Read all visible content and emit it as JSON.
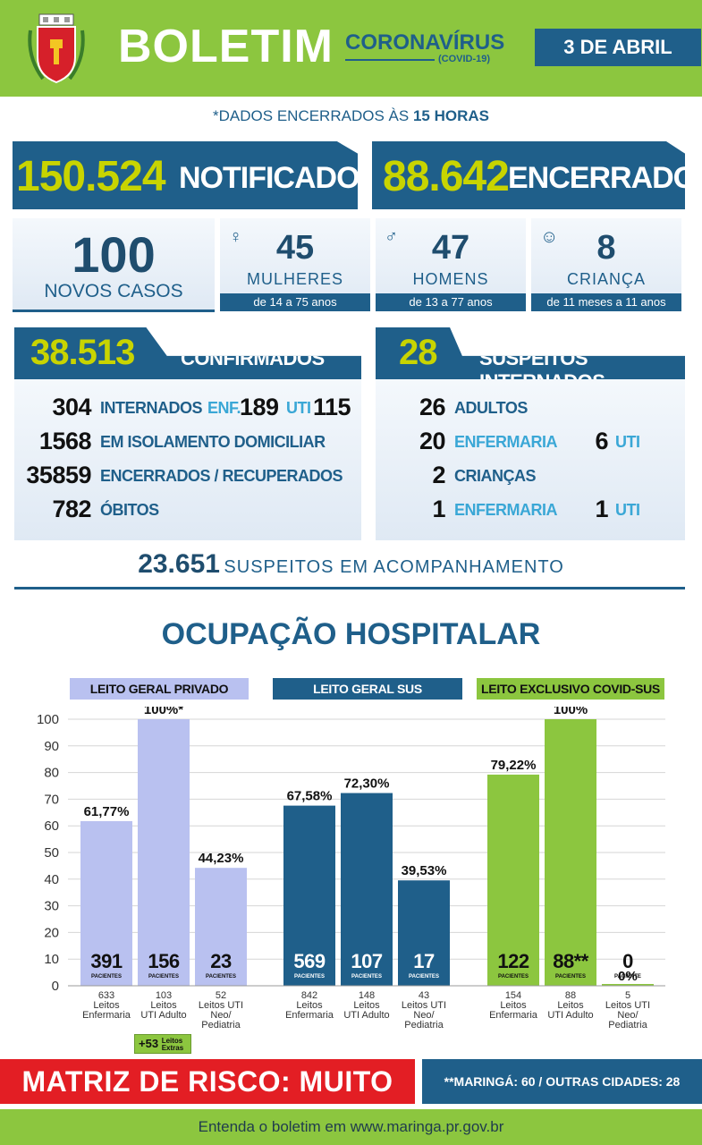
{
  "header": {
    "title": "BOLETIM",
    "subtitle": "CORONAVÍRUS",
    "subtitle_small": "(COVID-19)",
    "date": "3 DE ABRIL"
  },
  "note": {
    "prefix": "*DADOS ENCERRADOS ÀS",
    "hour": "15 HORAS"
  },
  "notificados": {
    "value": "150.524",
    "label": "NOTIFICADOS"
  },
  "encerrados": {
    "value": "88.642",
    "label": "ENCERRADOS"
  },
  "new_cases": {
    "value": "100",
    "label": "NOVOS CASOS"
  },
  "demographics": [
    {
      "value": "45",
      "label": "MULHERES",
      "range": "de 14 a 75 anos",
      "icon": "woman-icon"
    },
    {
      "value": "47",
      "label": "HOMENS",
      "range": "de 13 a 77 anos",
      "icon": "man-icon"
    },
    {
      "value": "8",
      "label": "CRIANÇA",
      "range": "de 11 meses a 11 anos",
      "icon": "child-icon"
    }
  ],
  "confirmed": {
    "value": "38.513",
    "label": "CONFIRMADOS",
    "rows": [
      {
        "value": "304",
        "label": "INTERNADOS",
        "enf_label": "ENF.",
        "enf_value": "189",
        "uti_label": "UTI",
        "uti_value": "115"
      },
      {
        "value": "1568",
        "label": "EM ISOLAMENTO DOMICILIAR"
      },
      {
        "value": "35859",
        "label": "ENCERRADOS / RECUPERADOS"
      },
      {
        "value": "782",
        "label": "ÓBITOS"
      }
    ]
  },
  "suspects": {
    "value": "28",
    "label": "SUSPEITOS INTERNADOS",
    "rows": [
      {
        "value": "26",
        "label": "ADULTOS"
      },
      {
        "value": "20",
        "label": "ENFERMARIA",
        "uti_value": "6",
        "uti_label": "UTI"
      },
      {
        "value": "2",
        "label": "CRIANÇAS"
      },
      {
        "value": "1",
        "label": "ENFERMARIA",
        "uti_value": "1",
        "uti_label": "UTI"
      }
    ]
  },
  "monitoring": {
    "value": "23.651",
    "label": "SUSPEITOS EM ACOMPANHAMENTO"
  },
  "occupancy_title": "OCUPAÇÃO HOSPITALAR",
  "chart_data": {
    "type": "bar",
    "ylim": [
      0,
      100
    ],
    "yticks": [
      0,
      10,
      20,
      30,
      40,
      50,
      60,
      70,
      80,
      90,
      100
    ],
    "groups": [
      {
        "name": "LEITO GERAL PRIVADO",
        "color": "#b9c1f0",
        "bars": [
          {
            "value": 61.77,
            "pct_label": "61,77%",
            "patients": "391",
            "beds": "633",
            "category": [
              "Leitos",
              "Enfermaria"
            ]
          },
          {
            "value": 100,
            "pct_label": "100%*",
            "patients": "156",
            "beds": "103",
            "category": [
              "Leitos",
              "UTI Adulto"
            ]
          },
          {
            "value": 44.23,
            "pct_label": "44,23%",
            "patients": "23",
            "beds": "52",
            "category": [
              "Leitos UTI",
              "Neo/",
              "Pediatria"
            ]
          }
        ]
      },
      {
        "name": "LEITO GERAL SUS",
        "color": "#1f5f8a",
        "bars": [
          {
            "value": 67.58,
            "pct_label": "67,58%",
            "patients": "569",
            "beds": "842",
            "category": [
              "Leitos",
              "Enfermaria"
            ]
          },
          {
            "value": 72.3,
            "pct_label": "72,30%",
            "patients": "107",
            "beds": "148",
            "category": [
              "Leitos",
              "UTI Adulto"
            ]
          },
          {
            "value": 39.53,
            "pct_label": "39,53%",
            "patients": "17",
            "beds": "43",
            "category": [
              "Leitos UTI",
              "Neo/",
              "Pediatria"
            ]
          }
        ]
      },
      {
        "name": "LEITO EXCLUSIVO COVID-SUS",
        "color": "#8cc63f",
        "bars": [
          {
            "value": 79.22,
            "pct_label": "79,22%",
            "patients": "122",
            "beds": "154",
            "category": [
              "Leitos",
              "Enfermaria"
            ]
          },
          {
            "value": 100,
            "pct_label": "100%",
            "patients": "88**",
            "beds": "88",
            "category": [
              "Leitos",
              "UTI Adulto"
            ]
          },
          {
            "value": 0,
            "pct_label": "0%",
            "patients": "0",
            "beds": "5",
            "category": [
              "Leitos UTI",
              "Neo/",
              "Pediatria"
            ]
          }
        ]
      }
    ],
    "patients_word_plural": "PACIENTES",
    "patients_word_singular": "PACIENTE"
  },
  "extra_beds": {
    "value": "+53",
    "label_1": "Leitos",
    "label_2": "Extras"
  },
  "risk": {
    "text": "MATRIZ DE RISCO: MUITO ALTO"
  },
  "cities": {
    "text": "**MARINGÁ: 60 / OUTRAS CIDADES: 28"
  },
  "footer": {
    "text": "Entenda o boletim em www.maringa.pr.gov.br"
  },
  "colors": {
    "primary": "#1f5f8a",
    "green": "#8cc63f",
    "lime": "#c8d400",
    "lavender": "#b9c1f0",
    "red": "#e31e24"
  }
}
